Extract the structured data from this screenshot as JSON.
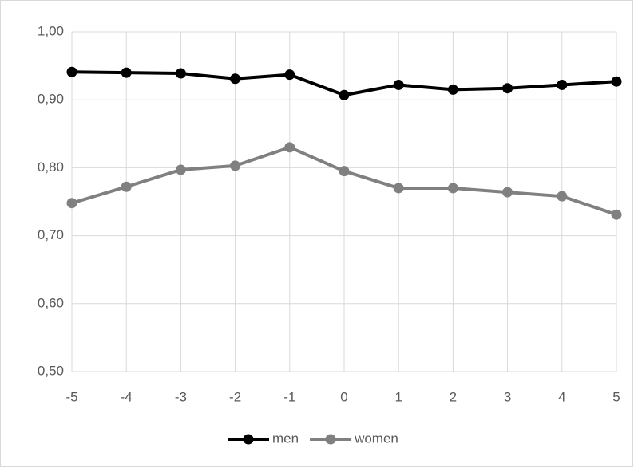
{
  "chart_data": {
    "type": "line",
    "x": [
      -5,
      -4,
      -3,
      -2,
      -1,
      0,
      1,
      2,
      3,
      4,
      5
    ],
    "series": [
      {
        "name": "men",
        "color": "#000000",
        "values": [
          0.941,
          0.94,
          0.939,
          0.931,
          0.937,
          0.907,
          0.922,
          0.915,
          0.917,
          0.922,
          0.927
        ]
      },
      {
        "name": "women",
        "color": "#808080",
        "values": [
          0.748,
          0.772,
          0.797,
          0.803,
          0.83,
          0.795,
          0.77,
          0.77,
          0.764,
          0.758,
          0.731
        ]
      }
    ],
    "xlim": [
      -5,
      5
    ],
    "xticks": [
      -5,
      -4,
      -3,
      -2,
      -1,
      0,
      1,
      2,
      3,
      4,
      5
    ],
    "ylim": [
      0.5,
      1.0
    ],
    "yticks": [
      {
        "value": 0.5,
        "label": "0,50"
      },
      {
        "value": 0.6,
        "label": "0,60"
      },
      {
        "value": 0.7,
        "label": "0,70"
      },
      {
        "value": 0.8,
        "label": "0,80"
      },
      {
        "value": 0.9,
        "label": "0,90"
      },
      {
        "value": 1.0,
        "label": "1,00"
      }
    ],
    "grid": true,
    "legend": "bottom"
  }
}
